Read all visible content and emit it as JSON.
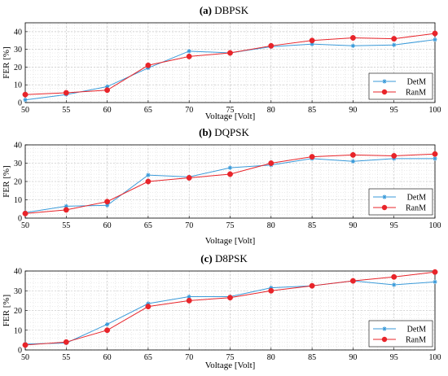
{
  "chart_data": [
    {
      "type": "line",
      "panel_letter": "(a)",
      "title": "DBPSK",
      "xlabel": "Voltage [Volt]",
      "ylabel": "FER [%]",
      "x": [
        50,
        55,
        60,
        65,
        70,
        75,
        80,
        85,
        90,
        95,
        100
      ],
      "xlim": [
        50,
        100
      ],
      "ylim": [
        0,
        45
      ],
      "yticks": [
        0,
        10,
        20,
        30,
        40
      ],
      "grid": true,
      "legend_position": "lower-right",
      "series": [
        {
          "name": "DetM",
          "color": "#3a9ad9",
          "marker": "star",
          "values": [
            1.5,
            4.5,
            9.0,
            19.5,
            29.0,
            28.0,
            31.5,
            33.0,
            32.0,
            32.5,
            35.5
          ]
        },
        {
          "name": "RanM",
          "color": "#e8242a",
          "marker": "circle",
          "values": [
            4.5,
            5.5,
            7.0,
            21.0,
            26.0,
            28.0,
            32.0,
            35.0,
            36.5,
            36.0,
            39.0
          ]
        }
      ]
    },
    {
      "type": "line",
      "panel_letter": "(b)",
      "title": "DQPSK",
      "xlabel": "Voltage [Volt]",
      "ylabel": "FER [%]",
      "x": [
        50,
        55,
        60,
        65,
        70,
        75,
        80,
        85,
        90,
        95,
        100
      ],
      "xlim": [
        50,
        100
      ],
      "ylim": [
        0,
        40
      ],
      "yticks": [
        0,
        10,
        20,
        30,
        40
      ],
      "grid": true,
      "legend_position": "lower-right",
      "series": [
        {
          "name": "DetM",
          "color": "#3a9ad9",
          "marker": "star",
          "values": [
            3.0,
            6.5,
            7.0,
            23.5,
            22.5,
            27.5,
            29.0,
            32.5,
            31.0,
            32.5,
            32.5
          ]
        },
        {
          "name": "RanM",
          "color": "#e8242a",
          "marker": "circle",
          "values": [
            2.5,
            4.5,
            9.0,
            20.0,
            22.0,
            24.0,
            30.0,
            33.5,
            34.5,
            34.0,
            35.0
          ]
        }
      ]
    },
    {
      "type": "line",
      "panel_letter": "(c)",
      "title": "D8PSK",
      "xlabel": "Voltage [Volt]",
      "ylabel": "FER [%]",
      "x": [
        50,
        55,
        60,
        65,
        70,
        75,
        80,
        85,
        90,
        95,
        100
      ],
      "xlim": [
        50,
        100
      ],
      "ylim": [
        0,
        40
      ],
      "yticks": [
        0,
        10,
        20,
        30,
        40
      ],
      "grid": true,
      "legend_position": "lower-right",
      "series": [
        {
          "name": "DetM",
          "color": "#3a9ad9",
          "marker": "star",
          "values": [
            3.0,
            3.5,
            13.0,
            23.5,
            27.0,
            27.0,
            31.5,
            32.5,
            35.0,
            33.0,
            34.5
          ]
        },
        {
          "name": "RanM",
          "color": "#e8242a",
          "marker": "circle",
          "values": [
            2.5,
            4.0,
            10.0,
            22.0,
            25.0,
            26.5,
            30.0,
            32.5,
            35.0,
            37.0,
            39.5
          ]
        }
      ]
    }
  ]
}
